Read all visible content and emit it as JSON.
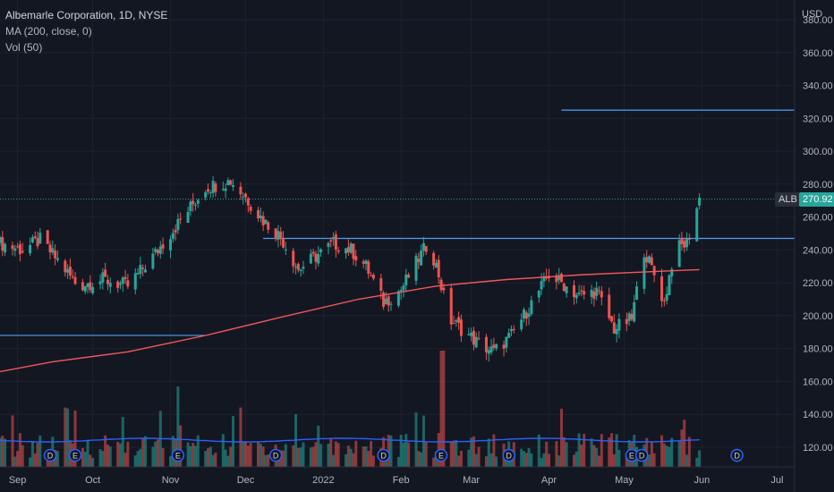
{
  "legend": {
    "symbol_line": "Albemarle Corporation, 1D, NYSE",
    "ma_line": "MA (200, close, 0)",
    "vol_line": "Vol (50)"
  },
  "price_scale": {
    "currency": "USD",
    "ticks": [
      "380.00",
      "360.00",
      "340.00",
      "320.00",
      "300.00",
      "280.00",
      "260.00",
      "240.00",
      "220.00",
      "200.00",
      "180.00",
      "160.00",
      "140.00",
      "120.00"
    ]
  },
  "time_axis": {
    "labels": [
      "Sep",
      "Oct",
      "Nov",
      "Dec",
      "2022",
      "Feb",
      "Mar",
      "Apr",
      "May",
      "Jun",
      "Jul"
    ]
  },
  "last_price": {
    "symbol": "ALB",
    "value": "270.92"
  },
  "event_markers": [
    "D",
    "E",
    "E",
    "D",
    "D",
    "E",
    "D",
    "E",
    "D",
    "D"
  ],
  "colors": {
    "background": "#131722",
    "up": "#26a69a",
    "down": "#ef5350",
    "ma": "#f0585a",
    "vol_ma": "#2962ff",
    "hline": "#4c9ff5",
    "grid": "#1e222d",
    "axis_text": "#b2b5be"
  },
  "chart_data": {
    "type": "candlestick",
    "title": "Albemarle Corporation, 1D, NYSE",
    "ylim": [
      108,
      392
    ],
    "x_range": [
      "2021-08-25",
      "2022-07-08"
    ],
    "horizontal_lines": [
      {
        "y": 188,
        "from": "2021-08-25",
        "to": "2021-11-15"
      },
      {
        "y": 247,
        "from": "2021-12-08",
        "to": "2022-07-08"
      },
      {
        "y": 325,
        "from": "2022-04-06",
        "to": "2022-07-08"
      }
    ],
    "ma200_points": [
      [
        "2021-08-25",
        166
      ],
      [
        "2021-09-15",
        172
      ],
      [
        "2021-10-15",
        178
      ],
      [
        "2021-11-15",
        188
      ],
      [
        "2021-12-15",
        199
      ],
      [
        "2022-01-15",
        210
      ],
      [
        "2022-02-15",
        218
      ],
      [
        "2022-03-15",
        222
      ],
      [
        "2022-04-15",
        225
      ],
      [
        "2022-05-15",
        227
      ],
      [
        "2022-05-31",
        228
      ]
    ],
    "close_points": [
      [
        "2021-08-25",
        244
      ],
      [
        "2021-09-03",
        240
      ],
      [
        "2021-09-10",
        246
      ],
      [
        "2021-09-18",
        232
      ],
      [
        "2021-09-25",
        218
      ],
      [
        "2021-10-05",
        222
      ],
      [
        "2021-10-15",
        218
      ],
      [
        "2021-10-25",
        236
      ],
      [
        "2021-11-05",
        258
      ],
      [
        "2021-11-15",
        278
      ],
      [
        "2021-11-25",
        282
      ],
      [
        "2021-12-01",
        272
      ],
      [
        "2021-12-08",
        258
      ],
      [
        "2021-12-15",
        248
      ],
      [
        "2021-12-22",
        228
      ],
      [
        "2021-12-29",
        236
      ],
      [
        "2022-01-05",
        244
      ],
      [
        "2022-01-12",
        240
      ],
      [
        "2022-01-18",
        230
      ],
      [
        "2022-01-25",
        208
      ],
      [
        "2022-02-01",
        216
      ],
      [
        "2022-02-07",
        232
      ],
      [
        "2022-02-12",
        245
      ],
      [
        "2022-02-16",
        225
      ],
      [
        "2022-02-20",
        198
      ],
      [
        "2022-02-25",
        192
      ],
      [
        "2022-03-04",
        183
      ],
      [
        "2022-03-10",
        178
      ],
      [
        "2022-03-17",
        188
      ],
      [
        "2022-03-24",
        205
      ],
      [
        "2022-04-01",
        225
      ],
      [
        "2022-04-06",
        220
      ],
      [
        "2022-04-13",
        212
      ],
      [
        "2022-04-20",
        215
      ],
      [
        "2022-04-27",
        192
      ],
      [
        "2022-05-04",
        198
      ],
      [
        "2022-05-09",
        240
      ],
      [
        "2022-05-13",
        225
      ],
      [
        "2022-05-17",
        208
      ],
      [
        "2022-05-21",
        240
      ],
      [
        "2022-05-26",
        244
      ],
      [
        "2022-05-31",
        271
      ]
    ]
  }
}
